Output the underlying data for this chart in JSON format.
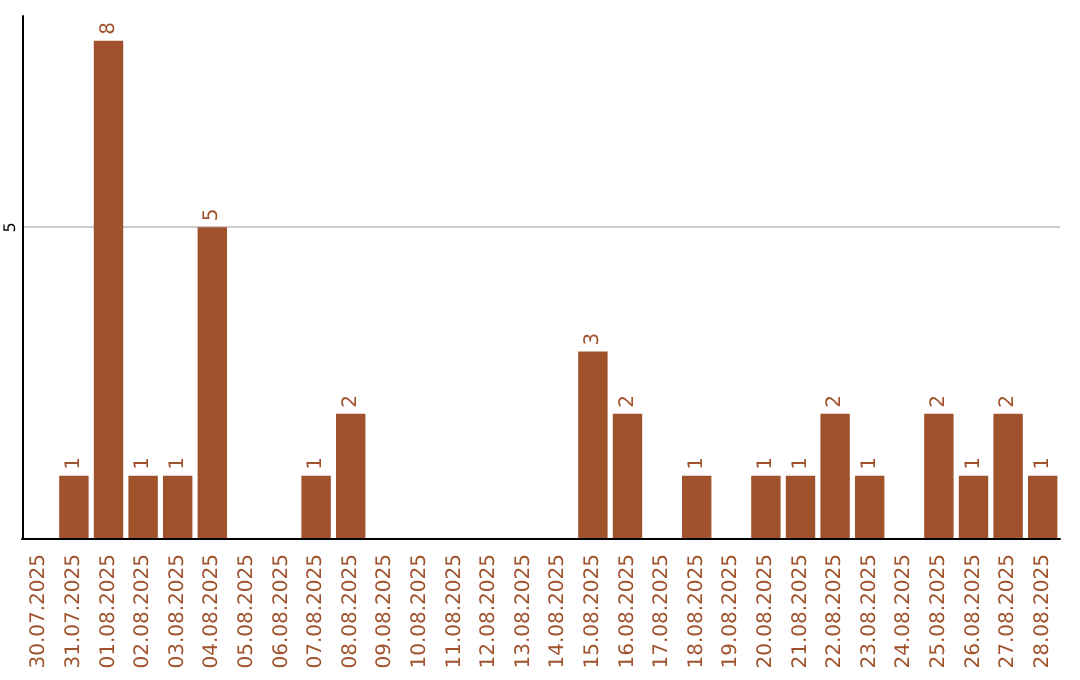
{
  "chart_data": {
    "type": "bar",
    "categories": [
      "30.07.2025",
      "31.07.2025",
      "01.08.2025",
      "02.08.2025",
      "03.08.2025",
      "04.08.2025",
      "05.08.2025",
      "06.08.2025",
      "07.08.2025",
      "08.08.2025",
      "09.08.2025",
      "10.08.2025",
      "11.08.2025",
      "12.08.2025",
      "13.08.2025",
      "14.08.2025",
      "15.08.2025",
      "16.08.2025",
      "17.08.2025",
      "18.08.2025",
      "19.08.2025",
      "20.08.2025",
      "21.08.2025",
      "22.08.2025",
      "23.08.2025",
      "24.08.2025",
      "25.08.2025",
      "26.08.2025",
      "27.08.2025",
      "28.08.2025"
    ],
    "values": [
      0,
      1,
      8,
      1,
      1,
      5,
      0,
      0,
      1,
      2,
      0,
      0,
      0,
      0,
      0,
      0,
      3,
      2,
      0,
      1,
      0,
      1,
      1,
      2,
      1,
      0,
      2,
      1,
      2,
      1
    ],
    "value_labels": [
      null,
      "1",
      "8",
      "1",
      "1",
      "5",
      null,
      null,
      "1",
      "2",
      null,
      null,
      null,
      null,
      null,
      null,
      "3",
      "2",
      null,
      "1",
      null,
      "1",
      "1",
      "2",
      "1",
      null,
      "2",
      "1",
      "2",
      "1"
    ],
    "color": "#a0522d",
    "ylim": [
      0,
      8.4
    ],
    "yticks": [
      5
    ],
    "grid": "y"
  }
}
